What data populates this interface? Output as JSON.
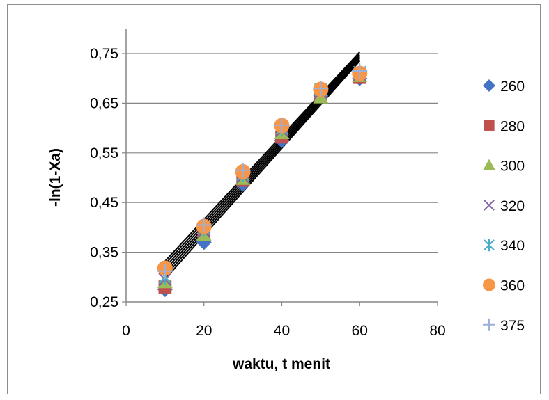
{
  "chart_data": {
    "type": "scatter",
    "title": "",
    "xlabel": "waktu, t menit",
    "ylabel": "-ln(1-Xa)",
    "xlim": [
      0,
      80
    ],
    "ylim": [
      0.25,
      0.8
    ],
    "x_ticks": [
      0,
      20,
      40,
      60,
      80
    ],
    "x_tick_labels": [
      "0",
      "20",
      "40",
      "60",
      "80"
    ],
    "y_ticks": [
      0.25,
      0.35,
      0.45,
      0.55,
      0.65,
      0.75
    ],
    "y_tick_labels": [
      "0,25",
      "0,35",
      "0,45",
      "0,55",
      "0,65",
      "0,75"
    ],
    "grid": "horizontal",
    "legend_position": "right",
    "x": [
      10,
      20,
      30,
      40,
      50,
      60
    ],
    "series": [
      {
        "name": "260",
        "marker": "diamond",
        "color": "#4472C4",
        "values": [
          0.275,
          0.37,
          0.487,
          0.575,
          0.665,
          0.7
        ]
      },
      {
        "name": "280",
        "marker": "square",
        "color": "#C0504D",
        "values": [
          0.28,
          0.385,
          0.495,
          0.582,
          0.668,
          0.702
        ]
      },
      {
        "name": "300",
        "marker": "triangle",
        "color": "#9BBB59",
        "values": [
          0.29,
          0.385,
          0.498,
          0.59,
          0.662,
          0.705
        ]
      },
      {
        "name": "320",
        "marker": "x",
        "color": "#8064A2",
        "values": [
          0.295,
          0.392,
          0.502,
          0.595,
          0.672,
          0.708
        ]
      },
      {
        "name": "340",
        "marker": "asterisk",
        "color": "#4BACC6",
        "values": [
          0.3,
          0.398,
          0.507,
          0.6,
          0.677,
          0.712
        ]
      },
      {
        "name": "360",
        "marker": "circle",
        "color": "#F79646",
        "values": [
          0.318,
          0.402,
          0.512,
          0.605,
          0.678,
          0.71
        ]
      },
      {
        "name": "375",
        "marker": "plus",
        "color": "#9DB0DA",
        "values": [
          0.312,
          0.405,
          0.515,
          0.606,
          0.68,
          0.715
        ]
      }
    ],
    "trendlines": [
      {
        "series": "260",
        "start": [
          10,
          0.296
        ],
        "end": [
          60,
          0.735
        ]
      },
      {
        "series": "280",
        "start": [
          10,
          0.302
        ],
        "end": [
          60,
          0.738
        ]
      },
      {
        "series": "300",
        "start": [
          10,
          0.308
        ],
        "end": [
          60,
          0.741
        ]
      },
      {
        "series": "320",
        "start": [
          10,
          0.314
        ],
        "end": [
          60,
          0.744
        ]
      },
      {
        "series": "340",
        "start": [
          10,
          0.32
        ],
        "end": [
          60,
          0.747
        ]
      },
      {
        "series": "360",
        "start": [
          10,
          0.326
        ],
        "end": [
          60,
          0.75
        ]
      },
      {
        "series": "375",
        "start": [
          10,
          0.332
        ],
        "end": [
          60,
          0.753
        ]
      }
    ]
  }
}
